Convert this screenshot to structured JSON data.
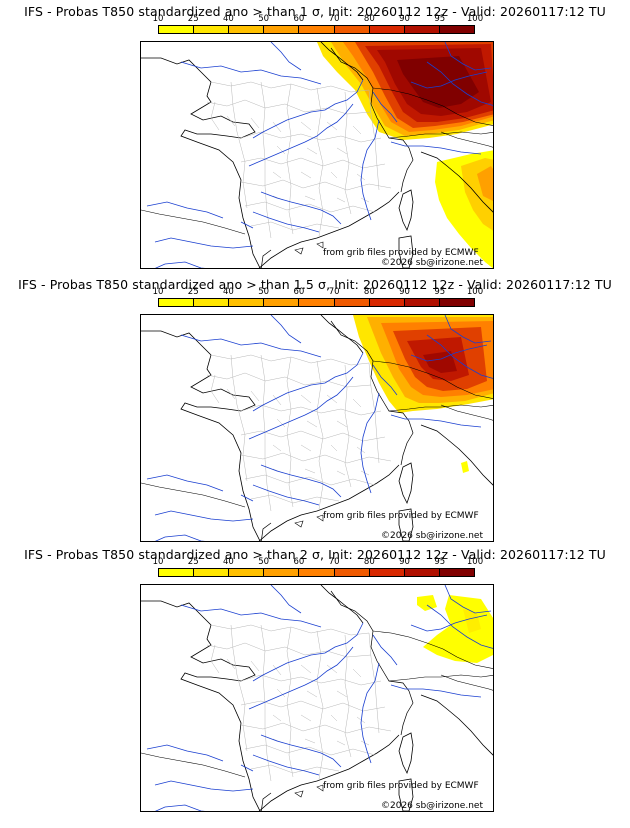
{
  "colorbar": {
    "ticks": [
      "10",
      "25",
      "40",
      "50",
      "60",
      "70",
      "80",
      "90",
      "95",
      "100"
    ],
    "colors": [
      "#ffff00",
      "#ffe600",
      "#ffc000",
      "#ffa000",
      "#ff8000",
      "#f05a00",
      "#d82800",
      "#b01000",
      "#800000"
    ]
  },
  "panels": [
    {
      "title": "IFS - Probas T850  standardized ano > than 1 σ, Init: 20260112 12z - Valid: 20260117:12 TU",
      "credit_source": "from grib files provided by ECMWF",
      "credit_site": "©2026 sb@irizone.net"
    },
    {
      "title": "IFS - Probas T850  standardized ano > than 1.5 σ, Init: 20260112 12z - Valid: 20260117:12 TU",
      "credit_source": "from grib files provided by ECMWF",
      "credit_site": "©2026 sb@irizone.net"
    },
    {
      "title": "IFS - Probas T850  standardized ano > than 2 σ, Init: 20260112 12z - Valid: 20260117:12 TU",
      "credit_source": "from grib files provided by ECMWF",
      "credit_site": "©2026 sb@irizone.net"
    }
  ]
}
